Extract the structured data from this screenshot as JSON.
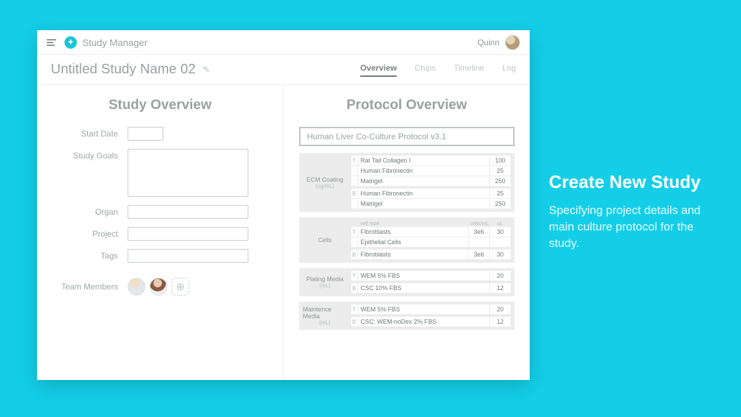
{
  "colors": {
    "page_bg": "#14cee8",
    "window_bg": "#ffffff",
    "text_muted": "#9aa1a1",
    "divider": "#eceeee",
    "input_border": "#c7cccc",
    "block_bg": "#ececec"
  },
  "header": {
    "app_title": "Study Manager",
    "user_name": "Quinn"
  },
  "study": {
    "title": "Untitled Study Name 02"
  },
  "tabs": {
    "overview": "Overview",
    "chips": "Chips",
    "timeline": "Timeline",
    "log": "Log",
    "active": "overview"
  },
  "left": {
    "heading": "Study Overview",
    "labels": {
      "start_date": "Start Date",
      "study_goals": "Study Goals",
      "organ": "Organ",
      "project": "Project",
      "tags": "Tags",
      "team_members": "Team Members"
    },
    "add_member_glyph": "⊕"
  },
  "right": {
    "heading": "Protocol Overview",
    "protocol_name": "Human Liver Co-Culture Protocol v3.1",
    "blocks": [
      {
        "label": "ECM Coating",
        "sublabel": "(ug/mL)",
        "headers": null,
        "groups": [
          {
            "channel": "T",
            "rows": [
              {
                "name": "Rat Tail Collagen I",
                "v1": "100"
              },
              {
                "name": "Human Fibronectin",
                "v1": "25"
              },
              {
                "name": "Matrigel",
                "v1": "250"
              }
            ]
          },
          {
            "channel": "B",
            "rows": [
              {
                "name": "Human Fibronectin",
                "v1": "25"
              },
              {
                "name": "Matrigel",
                "v1": "250"
              }
            ]
          }
        ],
        "cols": 1
      },
      {
        "label": "Cells",
        "sublabel": "",
        "headers": [
          "cell type",
          "cells/mL",
          "uL"
        ],
        "groups": [
          {
            "channel": "T",
            "rows": [
              {
                "name": "Fibroblasts",
                "v1": "3e6",
                "v2": "30"
              },
              {
                "name": "Epithelial Cells",
                "v1": "",
                "v2": ""
              }
            ]
          },
          {
            "channel": "B",
            "rows": [
              {
                "name": "Fibroblasts",
                "v1": "3e6",
                "v2": "30"
              }
            ]
          }
        ],
        "cols": 2
      },
      {
        "label": "Plating Media",
        "sublabel": "(mL)",
        "headers": null,
        "groups": [
          {
            "channel": "T",
            "rows": [
              {
                "name": "WEM 5% FBS",
                "v1": "20"
              }
            ]
          },
          {
            "channel": "B",
            "rows": [
              {
                "name": "CSC 10% FBS",
                "v1": "12"
              }
            ]
          }
        ],
        "cols": 1
      },
      {
        "label": "Maintence Media",
        "sublabel": "(mL)",
        "headers": null,
        "groups": [
          {
            "channel": "T",
            "rows": [
              {
                "name": "WEM 5% FBS",
                "v1": "20"
              }
            ]
          },
          {
            "channel": "B",
            "rows": [
              {
                "name": "CSC: WEM-noDex 2% FBS",
                "v1": "12"
              }
            ]
          }
        ],
        "cols": 1
      }
    ]
  },
  "caption": {
    "title": "Create New Study",
    "body": "Specifying project details and main culture protocol for the study."
  }
}
